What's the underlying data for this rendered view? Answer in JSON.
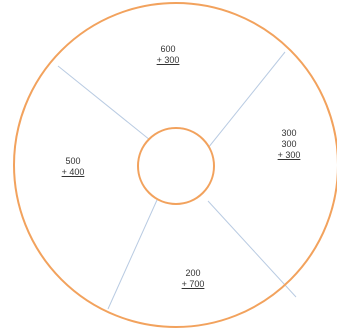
{
  "colors": {
    "ring": "#f2a25d",
    "spokes": "#b9cbe2",
    "text": "#333333",
    "background": "#ffffff"
  },
  "sections": {
    "top": {
      "line1": "600",
      "line2": "+ 300"
    },
    "right": {
      "line1": "300",
      "line2": "300",
      "line3": "+ 300"
    },
    "left": {
      "line1": "500",
      "line2": "+ 400"
    },
    "bottom": {
      "line1": "200",
      "line2": "+ 700"
    }
  }
}
